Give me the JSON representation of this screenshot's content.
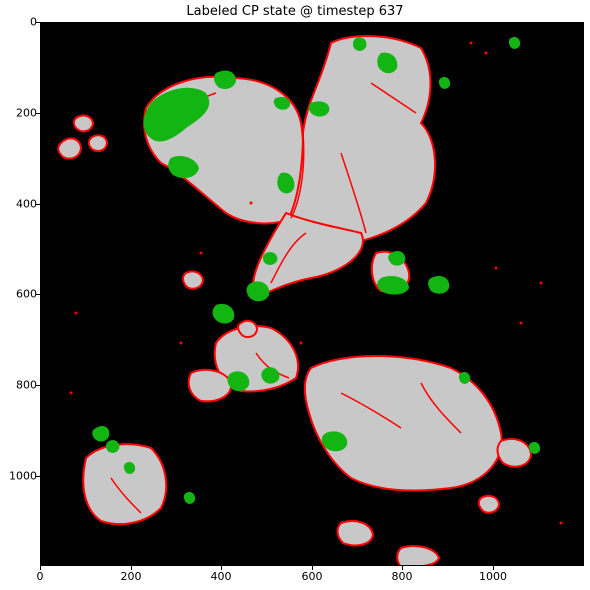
{
  "title": "Labeled CP state @ timestep 637",
  "axes": {
    "y_ticks": [
      "0",
      "200",
      "400",
      "600",
      "800",
      "1000"
    ],
    "x_ticks": [
      "0",
      "200",
      "400",
      "600",
      "800",
      "1000"
    ]
  },
  "colors": {
    "background": "#000000",
    "cell": "#c8c8c8",
    "boundary": "#ff0000",
    "label": "#12b512"
  }
}
